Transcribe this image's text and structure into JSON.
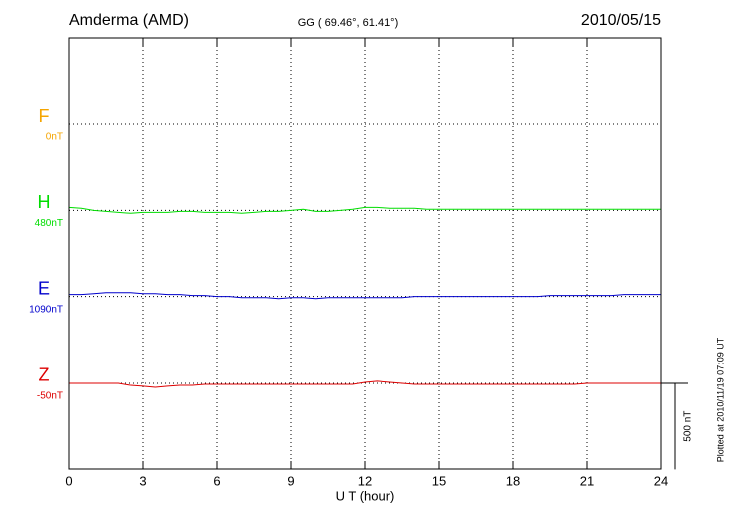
{
  "chart_data": {
    "type": "line",
    "title": "Amderma (AMD)",
    "subtitle": "GG ( 69.46°,  61.41°)",
    "date": "2010/05/15",
    "x_label": "U T (hour)",
    "note": "Plotted at 2010/11/19 07:09 UT",
    "xlim": [
      0,
      24
    ],
    "xticks": [
      0,
      3,
      6,
      9,
      12,
      15,
      18,
      21,
      24
    ],
    "grid": true,
    "scale_bar": {
      "value": 500,
      "label": "500 nT"
    },
    "x": [
      0,
      0.5,
      1,
      1.5,
      2,
      2.5,
      3,
      3.5,
      4,
      4.5,
      5,
      5.5,
      6,
      6.5,
      7,
      7.5,
      8,
      8.5,
      9,
      9.5,
      10,
      10.5,
      11,
      11.5,
      12,
      12.5,
      13,
      13.5,
      14,
      14.5,
      15,
      15.5,
      16,
      16.5,
      17,
      17.5,
      18,
      18.5,
      19,
      19.5,
      20,
      20.5,
      21,
      21.5,
      22,
      22.5,
      23,
      23.5,
      24
    ],
    "series": [
      {
        "name": "F",
        "color": "#f5a500",
        "baseline": {
          "value": 0,
          "label": "0nT"
        },
        "values": [
          null,
          null,
          null,
          null,
          null,
          null,
          null,
          null,
          null,
          null,
          null,
          null,
          null,
          null,
          null,
          null,
          null,
          null,
          null,
          null,
          null,
          null,
          null,
          null,
          null,
          null,
          null,
          null,
          null,
          null,
          null,
          null,
          null,
          null,
          null,
          null,
          null,
          null,
          null,
          null,
          null,
          null,
          null,
          null,
          null,
          null,
          null,
          null,
          null
        ]
      },
      {
        "name": "H",
        "color": "#00dd00",
        "baseline": {
          "value": 480,
          "label": "480nT"
        },
        "values": [
          497,
          492,
          480,
          474,
          468,
          463,
          468,
          468,
          468,
          474,
          474,
          468,
          468,
          468,
          463,
          468,
          474,
          474,
          480,
          486,
          474,
          474,
          480,
          486,
          497,
          497,
          492,
          492,
          492,
          486,
          486,
          486,
          486,
          486,
          486,
          486,
          486,
          486,
          486,
          486,
          486,
          486,
          486,
          486,
          486,
          486,
          486,
          486,
          486
        ]
      },
      {
        "name": "E",
        "color": "#0000cc",
        "baseline": {
          "value": 1090,
          "label": "1090nT"
        },
        "values": [
          1102,
          1102,
          1107,
          1113,
          1113,
          1113,
          1107,
          1107,
          1102,
          1102,
          1096,
          1096,
          1090,
          1090,
          1084,
          1084,
          1084,
          1078,
          1084,
          1084,
          1078,
          1084,
          1084,
          1084,
          1084,
          1084,
          1084,
          1084,
          1090,
          1090,
          1090,
          1090,
          1090,
          1090,
          1090,
          1090,
          1090,
          1090,
          1090,
          1096,
          1096,
          1096,
          1096,
          1096,
          1096,
          1102,
          1102,
          1102,
          1102
        ]
      },
      {
        "name": "Z",
        "color": "#dd0000",
        "baseline": {
          "value": -50,
          "label": "-50nT"
        },
        "values": [
          -50,
          -50,
          -50,
          -50,
          -50,
          -62,
          -67,
          -73,
          -67,
          -62,
          -62,
          -56,
          -56,
          -56,
          -56,
          -56,
          -56,
          -56,
          -56,
          -56,
          -56,
          -56,
          -56,
          -56,
          -44,
          -38,
          -44,
          -50,
          -56,
          -56,
          -56,
          -56,
          -56,
          -56,
          -56,
          -56,
          -56,
          -56,
          -56,
          -56,
          -56,
          -56,
          -50,
          -50,
          -50,
          -50,
          -50,
          -50,
          -50
        ]
      }
    ]
  }
}
